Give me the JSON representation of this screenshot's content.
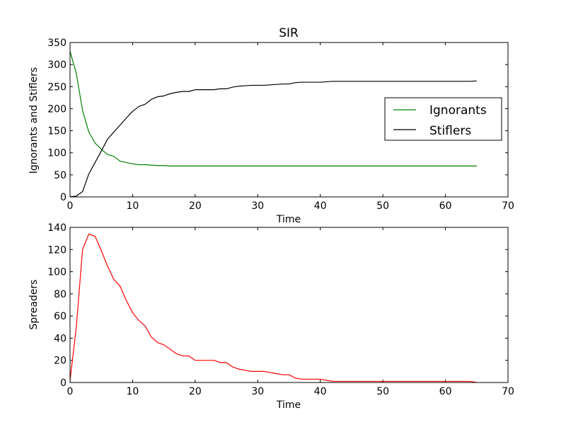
{
  "chart_data": [
    {
      "type": "line",
      "title": "SIR",
      "xlabel": "Time",
      "ylabel": "Ignorants and Stiflers",
      "xlim": [
        0,
        70
      ],
      "ylim": [
        0,
        350
      ],
      "xticks": [
        0,
        10,
        20,
        30,
        40,
        50,
        60,
        70
      ],
      "yticks": [
        0,
        50,
        100,
        150,
        200,
        250,
        300,
        350
      ],
      "grid": false,
      "legend": "center-right",
      "series": [
        {
          "name": "Ignorants",
          "color": "#008000",
          "x": [
            0,
            1,
            2,
            3,
            4,
            5,
            6,
            7,
            8,
            9,
            10,
            11,
            12,
            13,
            14,
            15,
            16,
            17,
            18,
            19,
            20,
            21,
            22,
            23,
            24,
            25,
            26,
            27,
            28,
            29,
            30,
            31,
            32,
            33,
            34,
            35,
            36,
            37,
            38,
            39,
            40,
            41,
            42,
            43,
            44,
            45,
            46,
            47,
            48,
            49,
            50,
            51,
            52,
            53,
            54,
            55,
            56,
            57,
            58,
            59,
            60,
            61,
            62,
            63,
            64,
            65
          ],
          "y": [
            330,
            280,
            196,
            147,
            122,
            108,
            96,
            92,
            81,
            78,
            75,
            73,
            73,
            72,
            71,
            71,
            70,
            70,
            70,
            70,
            70,
            70,
            70,
            70,
            70,
            70,
            70,
            70,
            70,
            70,
            70,
            70,
            70,
            70,
            70,
            70,
            70,
            70,
            70,
            70,
            70,
            70,
            70,
            70,
            70,
            70,
            70,
            70,
            70,
            70,
            70,
            70,
            70,
            70,
            70,
            70,
            70,
            70,
            70,
            70,
            70,
            70,
            70,
            70,
            70,
            70
          ]
        },
        {
          "name": "Stiflers",
          "color": "#000000",
          "x": [
            0,
            1,
            2,
            3,
            4,
            5,
            6,
            7,
            8,
            9,
            10,
            11,
            12,
            13,
            14,
            15,
            16,
            17,
            18,
            19,
            20,
            21,
            22,
            23,
            24,
            25,
            26,
            27,
            28,
            29,
            30,
            31,
            32,
            33,
            34,
            35,
            36,
            37,
            38,
            39,
            40,
            41,
            42,
            43,
            44,
            45,
            46,
            47,
            48,
            49,
            50,
            51,
            52,
            53,
            54,
            55,
            56,
            57,
            58,
            59,
            60,
            61,
            62,
            63,
            64,
            65
          ],
          "y": [
            0,
            2,
            12,
            52,
            78,
            104,
            131,
            147,
            163,
            179,
            194,
            205,
            210,
            221,
            227,
            229,
            234,
            237,
            239,
            239,
            243,
            243,
            243,
            243,
            245,
            245,
            249,
            251,
            252,
            253,
            253,
            253,
            254,
            255,
            256,
            256,
            259,
            260,
            260,
            260,
            260,
            261,
            262,
            262,
            262,
            262,
            262,
            262,
            262,
            262,
            262,
            262,
            262,
            262,
            262,
            262,
            262,
            262,
            262,
            262,
            262,
            262,
            262,
            262,
            262,
            263
          ]
        }
      ]
    },
    {
      "type": "line",
      "title": "",
      "xlabel": "Time",
      "ylabel": "Spreaders",
      "xlim": [
        0,
        70
      ],
      "ylim": [
        0,
        140
      ],
      "xticks": [
        0,
        10,
        20,
        30,
        40,
        50,
        60,
        70
      ],
      "yticks": [
        0,
        20,
        40,
        60,
        80,
        100,
        120,
        140
      ],
      "grid": false,
      "series": [
        {
          "color": "#ff0000",
          "x": [
            0,
            1,
            2,
            3,
            4,
            5,
            6,
            7,
            8,
            9,
            10,
            11,
            12,
            13,
            14,
            15,
            16,
            17,
            18,
            19,
            20,
            21,
            22,
            23,
            24,
            25,
            26,
            27,
            28,
            29,
            30,
            31,
            32,
            33,
            34,
            35,
            36,
            37,
            38,
            39,
            40,
            41,
            42,
            43,
            44,
            45,
            46,
            47,
            48,
            49,
            50,
            51,
            52,
            53,
            54,
            55,
            56,
            57,
            58,
            59,
            60,
            61,
            62,
            63,
            64,
            65
          ],
          "y": [
            2,
            50,
            120,
            134,
            132,
            119,
            105,
            93,
            87,
            74,
            63,
            56,
            51,
            41,
            36,
            34,
            30,
            26,
            24,
            24,
            20,
            20,
            20,
            20,
            18,
            18,
            14,
            12,
            11,
            10,
            10,
            10,
            9,
            8,
            7,
            7,
            4,
            3,
            3,
            3,
            3,
            2,
            1,
            1,
            1,
            1,
            1,
            1,
            1,
            1,
            1,
            1,
            1,
            1,
            1,
            1,
            1,
            1,
            1,
            1,
            1,
            1,
            1,
            1,
            1,
            0
          ]
        }
      ]
    }
  ]
}
